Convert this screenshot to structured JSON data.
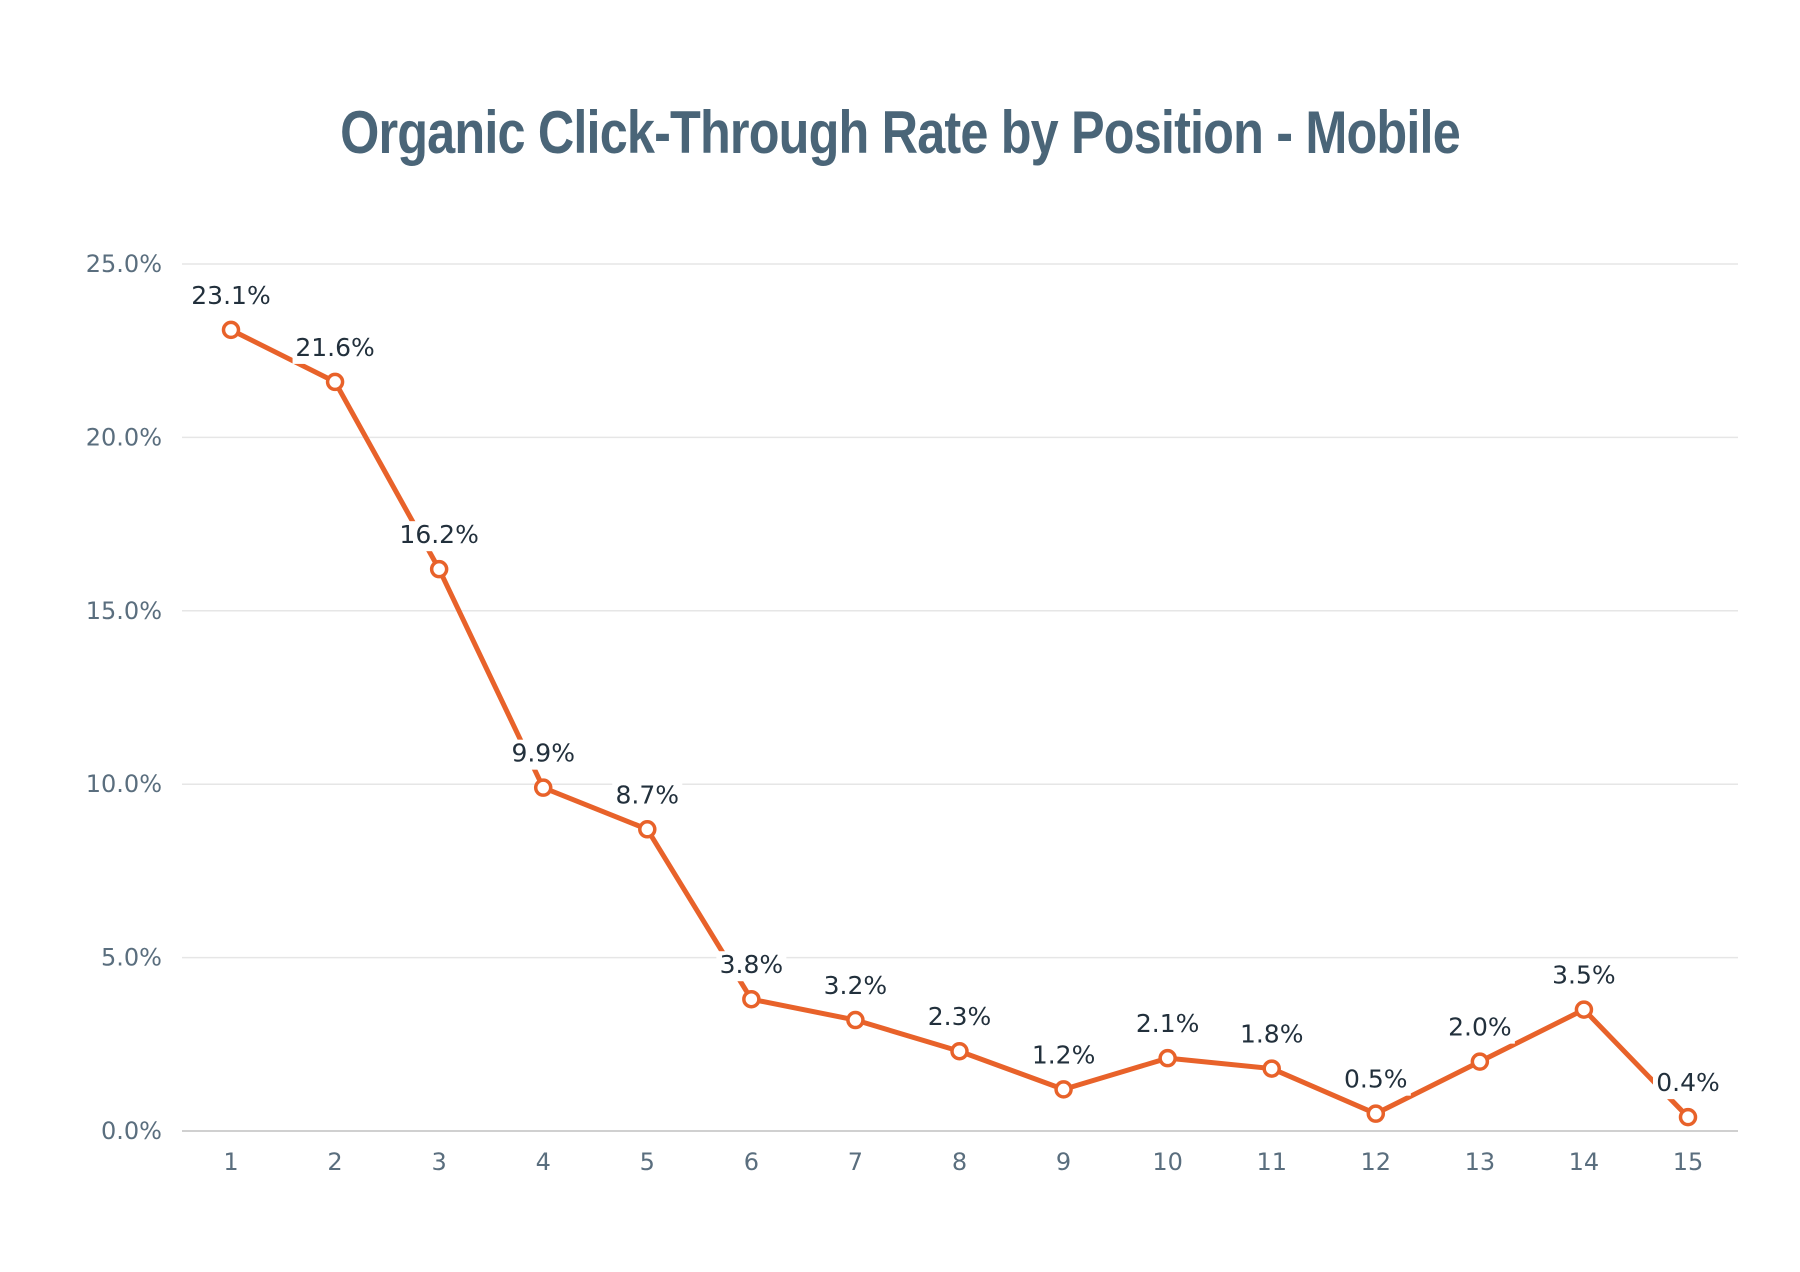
{
  "chart_data": {
    "type": "line",
    "title": "Organic Click-Through Rate by Position - Mobile",
    "xlabel": "",
    "ylabel": "",
    "categories": [
      "1",
      "2",
      "3",
      "4",
      "5",
      "6",
      "7",
      "8",
      "9",
      "10",
      "11",
      "12",
      "13",
      "14",
      "15"
    ],
    "values": [
      23.1,
      21.6,
      16.2,
      9.9,
      8.7,
      3.8,
      3.2,
      2.3,
      1.2,
      2.1,
      1.8,
      0.5,
      2.0,
      3.5,
      0.4
    ],
    "labels": [
      "23.1%",
      "21.6%",
      "16.2%",
      "9.9%",
      "8.7%",
      "3.8%",
      "3.2%",
      "2.3%",
      "1.2%",
      "2.1%",
      "1.8%",
      "0.5%",
      "2.0%",
      "3.5%",
      "0.4%"
    ],
    "ylim": [
      0,
      25
    ],
    "yticks": [
      0,
      5,
      10,
      15,
      20,
      25
    ],
    "ytick_labels": [
      "0.0%",
      "5.0%",
      "10.0%",
      "15.0%",
      "20.0%",
      "25.0%"
    ],
    "grid": true,
    "legend": "none",
    "colors": {
      "line": "#e8622a",
      "title": "#4a6578",
      "axis_text": "#5a6e7e",
      "label_text": "#22303c",
      "grid": "#e6e6e6"
    }
  }
}
